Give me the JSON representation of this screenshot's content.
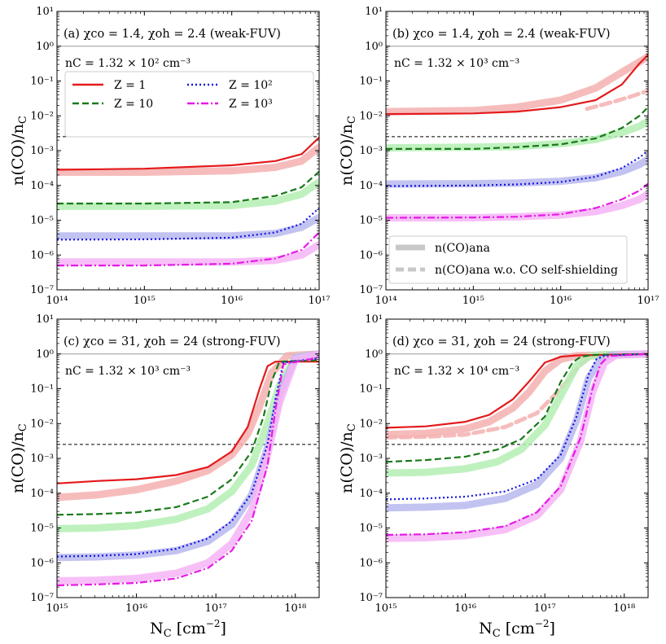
{
  "figure": {
    "ylabel": "n(CO)/n",
    "ylabel_sub": "C",
    "xlabel": "N",
    "xlabel_sub": "C",
    "xlabel_unit": "[cm",
    "xlabel_exp": "−2",
    "xlabel_close": "]"
  },
  "legend_main": [
    {
      "label": "Z = 1",
      "color": "#e41a1c",
      "style": "solid"
    },
    {
      "label": "Z = 10",
      "color": "#1a7a1a",
      "style": "dashed"
    },
    {
      "label": "Z = 10²",
      "color": "#1414e6",
      "style": "dotted"
    },
    {
      "label": "Z = 10³",
      "color": "#e619e6",
      "style": "dashdot"
    }
  ],
  "legend_analytic": [
    {
      "label": "n(CO)ana",
      "style": "thick-solid"
    },
    {
      "label": "n(CO)ana w.o. CO self-shielding",
      "style": "thick-dashed"
    }
  ],
  "colors": {
    "z1": "#e41a1c",
    "z10": "#1a7a1a",
    "z100": "#1414e6",
    "z1000": "#e619e6",
    "z1_light": "#f4b0b0",
    "z10_light": "#b4efb4",
    "z100_light": "#b8b8ef",
    "z1000_light": "#f6b4f6",
    "frame": "#000000",
    "ref": "#999999"
  },
  "chart_data": [
    {
      "id": "a",
      "type": "line",
      "title": "(a) χco = 1.4,  χoh = 2.4 (weak-FUV)",
      "density": "nC = 1.32 × 10² cm⁻³",
      "xlim_log": [
        14,
        17
      ],
      "ylim_log": [
        -7,
        1
      ],
      "xticks": [
        "10¹⁴",
        "10¹⁵",
        "10¹⁶",
        "10¹⁷"
      ],
      "yticks": [
        "10⁻⁷",
        "10⁻⁶",
        "10⁻⁵",
        "10⁻⁴",
        "10⁻³",
        "10⁻²",
        "10⁻¹",
        "10⁰",
        "10¹"
      ],
      "hline_log": -2.6,
      "series": [
        {
          "name": "Z = 1",
          "key": "z1",
          "style": "solid",
          "x": [
            14,
            15,
            16,
            16.5,
            16.8,
            17
          ],
          "y": [
            -3.55,
            -3.52,
            -3.42,
            -3.3,
            -3.1,
            -2.62
          ]
        },
        {
          "name": "Z = 1 (ana)",
          "key": "z1_light",
          "style": "band",
          "x": [
            14,
            15,
            16,
            16.5,
            16.8,
            17
          ],
          "y": [
            -3.62,
            -3.62,
            -3.58,
            -3.48,
            -3.3,
            -2.9
          ]
        },
        {
          "name": "Z = 10",
          "key": "z10",
          "style": "dashed",
          "x": [
            14,
            15,
            16,
            16.5,
            16.8,
            17
          ],
          "y": [
            -4.52,
            -4.52,
            -4.48,
            -4.3,
            -4.05,
            -3.6
          ]
        },
        {
          "name": "Z = 10 (ana)",
          "key": "z10_light",
          "style": "band",
          "x": [
            14,
            15,
            16,
            16.5,
            16.8,
            17
          ],
          "y": [
            -4.6,
            -4.6,
            -4.58,
            -4.45,
            -4.25,
            -3.9
          ]
        },
        {
          "name": "Z = 10²",
          "key": "z100",
          "style": "dotted",
          "x": [
            14,
            15,
            16,
            16.5,
            16.8,
            17
          ],
          "y": [
            -5.56,
            -5.55,
            -5.5,
            -5.35,
            -5.1,
            -4.65
          ]
        },
        {
          "name": "Z = 10² (ana)",
          "key": "z100_light",
          "style": "band",
          "x": [
            14,
            15,
            16,
            16.5,
            16.8,
            17
          ],
          "y": [
            -5.45,
            -5.45,
            -5.45,
            -5.38,
            -5.2,
            -4.92
          ]
        },
        {
          "name": "Z = 10³",
          "key": "z1000",
          "style": "dashdot",
          "x": [
            14,
            15,
            16,
            16.5,
            16.8,
            17
          ],
          "y": [
            -6.3,
            -6.3,
            -6.25,
            -6.1,
            -5.85,
            -5.35
          ]
        },
        {
          "name": "Z = 10³ (ana)",
          "key": "z1000_light",
          "style": "band",
          "x": [
            14,
            15,
            16,
            16.5,
            16.8,
            17
          ],
          "y": [
            -6.2,
            -6.2,
            -6.2,
            -6.15,
            -6.0,
            -5.7
          ]
        }
      ]
    },
    {
      "id": "b",
      "type": "line",
      "title": "(b) χco = 1.4,  χoh = 2.4 (weak-FUV)",
      "density": "nC = 1.32 × 10³ cm⁻³",
      "xlim_log": [
        14,
        17
      ],
      "ylim_log": [
        -7,
        1
      ],
      "xticks": [
        "10¹⁴",
        "10¹⁵",
        "10¹⁶",
        "10¹⁷"
      ],
      "yticks": [
        "10⁻⁷",
        "10⁻⁶",
        "10⁻⁵",
        "10⁻⁴",
        "10⁻³",
        "10⁻²",
        "10⁻¹",
        "10⁰",
        "10¹"
      ],
      "hline_log": -2.6,
      "series": [
        {
          "name": "Z = 1",
          "key": "z1",
          "style": "solid",
          "x": [
            14,
            15,
            15.5,
            16,
            16.4,
            16.7,
            16.9,
            17
          ],
          "y": [
            -1.95,
            -1.93,
            -1.88,
            -1.75,
            -1.55,
            -1.1,
            -0.5,
            -0.25
          ]
        },
        {
          "name": "Z = 1 (ana)",
          "key": "z1_light",
          "style": "band",
          "x": [
            14,
            15,
            15.5,
            16,
            16.4,
            16.7,
            16.9,
            17
          ],
          "y": [
            -1.88,
            -1.85,
            -1.75,
            -1.55,
            -1.2,
            -0.75,
            -0.45,
            -0.3
          ]
        },
        {
          "name": "Z = 1 (w.o.)",
          "key": "z1_light",
          "style": "dashband",
          "x": [
            16.3,
            16.6,
            16.8,
            17
          ],
          "y": [
            -1.8,
            -1.6,
            -1.45,
            -1.28
          ]
        },
        {
          "name": "Z = 10",
          "key": "z10",
          "style": "dashed",
          "x": [
            14,
            15,
            15.5,
            16,
            16.4,
            16.7,
            16.9,
            17
          ],
          "y": [
            -2.95,
            -2.95,
            -2.9,
            -2.82,
            -2.65,
            -2.35,
            -2.0,
            -1.75
          ]
        },
        {
          "name": "Z = 10 (ana)",
          "key": "z10_light",
          "style": "band",
          "x": [
            14,
            15,
            15.5,
            16,
            16.4,
            16.7,
            16.9,
            17
          ],
          "y": [
            -2.92,
            -2.9,
            -2.88,
            -2.8,
            -2.68,
            -2.48,
            -2.3,
            -2.15
          ]
        },
        {
          "name": "Z = 10²",
          "key": "z100",
          "style": "dotted",
          "x": [
            14,
            15,
            15.5,
            16,
            16.4,
            16.7,
            16.9,
            17
          ],
          "y": [
            -4.02,
            -4.0,
            -3.97,
            -3.9,
            -3.75,
            -3.5,
            -3.2,
            -3.0
          ]
        },
        {
          "name": "Z = 10² (ana)",
          "key": "z100_light",
          "style": "band",
          "x": [
            14,
            15,
            15.5,
            16,
            16.4,
            16.7,
            16.9,
            17
          ],
          "y": [
            -3.96,
            -3.95,
            -3.93,
            -3.88,
            -3.78,
            -3.6,
            -3.4,
            -3.25
          ]
        },
        {
          "name": "Z = 10³",
          "key": "z1000",
          "style": "dashdot",
          "x": [
            14,
            15,
            15.5,
            16,
            16.4,
            16.7,
            16.9,
            17
          ],
          "y": [
            -4.93,
            -4.92,
            -4.9,
            -4.83,
            -4.65,
            -4.4,
            -4.15,
            -3.95
          ]
        },
        {
          "name": "Z = 10³ (ana)",
          "key": "z1000_light",
          "style": "band",
          "x": [
            14,
            15,
            15.5,
            16,
            16.4,
            16.7,
            16.9,
            17
          ],
          "y": [
            -4.93,
            -4.93,
            -4.9,
            -4.85,
            -4.75,
            -4.58,
            -4.4,
            -4.25
          ]
        }
      ]
    },
    {
      "id": "c",
      "type": "line",
      "title": "(c) χco = 31,  χoh = 24 (strong-FUV)",
      "density": "nC = 1.32 × 10³ cm⁻³",
      "xlim_log": [
        15,
        18.3
      ],
      "ylim_log": [
        -7,
        1
      ],
      "xticks": [
        "10¹⁵",
        "10¹⁶",
        "10¹⁷",
        "10¹⁸"
      ],
      "yticks": [
        "10⁻⁷",
        "10⁻⁶",
        "10⁻⁵",
        "10⁻⁴",
        "10⁻³",
        "10⁻²",
        "10⁻¹",
        "10⁰",
        "10¹"
      ],
      "hline_log": -2.6,
      "series": [
        {
          "name": "Z = 1",
          "key": "z1",
          "style": "solid",
          "x": [
            15,
            15.5,
            16,
            16.5,
            16.9,
            17.2,
            17.4,
            17.55,
            17.65,
            17.75,
            18.3
          ],
          "y": [
            -3.72,
            -3.65,
            -3.6,
            -3.48,
            -3.25,
            -2.8,
            -2.1,
            -1.0,
            -0.35,
            -0.22,
            -0.22
          ]
        },
        {
          "name": "Z = 1 (ana)",
          "key": "z1_light",
          "style": "band",
          "x": [
            15,
            15.5,
            16,
            16.5,
            16.9,
            17.2,
            17.4,
            17.55,
            17.7,
            17.9,
            18.3
          ],
          "y": [
            -4.12,
            -4.05,
            -3.9,
            -3.65,
            -3.35,
            -2.9,
            -2.3,
            -1.5,
            -0.55,
            -0.05,
            0
          ]
        },
        {
          "name": "Z = 10",
          "key": "z10",
          "style": "dashed",
          "x": [
            15,
            15.5,
            16,
            16.5,
            16.9,
            17.2,
            17.45,
            17.6,
            17.7,
            17.8,
            18.3
          ],
          "y": [
            -4.62,
            -4.6,
            -4.55,
            -4.4,
            -4.1,
            -3.6,
            -2.8,
            -1.8,
            -0.8,
            -0.22,
            -0.18
          ]
        },
        {
          "name": "Z = 10 (ana)",
          "key": "z10_light",
          "style": "band",
          "x": [
            15,
            15.5,
            16,
            16.5,
            16.9,
            17.2,
            17.45,
            17.65,
            17.8,
            18.0,
            18.3
          ],
          "y": [
            -5.02,
            -5.0,
            -4.93,
            -4.75,
            -4.45,
            -3.95,
            -3.2,
            -2.0,
            -0.9,
            -0.1,
            0
          ]
        },
        {
          "name": "Z = 10²",
          "key": "z100",
          "style": "dotted",
          "x": [
            15,
            15.5,
            16,
            16.5,
            16.9,
            17.2,
            17.45,
            17.65,
            17.75,
            17.85,
            18.3
          ],
          "y": [
            -5.82,
            -5.8,
            -5.75,
            -5.6,
            -5.3,
            -4.8,
            -4.0,
            -2.6,
            -1.3,
            -0.25,
            -0.12
          ]
        },
        {
          "name": "Z = 10² (ana)",
          "key": "z100_light",
          "style": "band",
          "x": [
            15,
            15.5,
            16,
            16.5,
            16.9,
            17.2,
            17.45,
            17.65,
            17.8,
            18.0,
            18.3
          ],
          "y": [
            -5.85,
            -5.83,
            -5.78,
            -5.65,
            -5.38,
            -4.9,
            -4.05,
            -2.7,
            -1.2,
            -0.1,
            0
          ]
        },
        {
          "name": "Z = 10³",
          "key": "z1000",
          "style": "dashdot",
          "x": [
            15,
            15.5,
            16,
            16.5,
            16.9,
            17.2,
            17.45,
            17.65,
            17.75,
            17.85,
            18.3
          ],
          "y": [
            -6.65,
            -6.62,
            -6.58,
            -6.45,
            -6.15,
            -5.65,
            -4.8,
            -3.2,
            -1.6,
            -0.3,
            -0.1
          ]
        },
        {
          "name": "Z = 10³ (ana)",
          "key": "z1000_light",
          "style": "band",
          "x": [
            15,
            15.5,
            16,
            16.5,
            16.9,
            17.2,
            17.45,
            17.65,
            17.8,
            18.0,
            18.3
          ],
          "y": [
            -6.52,
            -6.5,
            -6.45,
            -6.3,
            -6.0,
            -5.45,
            -4.5,
            -2.9,
            -1.4,
            -0.15,
            0
          ]
        }
      ]
    },
    {
      "id": "d",
      "type": "line",
      "title": "(d) χco = 31,  χoh = 24 (strong-FUV)",
      "density": "nC = 1.32 × 10⁴ cm⁻³",
      "xlim_log": [
        15,
        18.3
      ],
      "ylim_log": [
        -7,
        1
      ],
      "xticks": [
        "10¹⁵",
        "10¹⁶",
        "10¹⁷",
        "10¹⁸"
      ],
      "yticks": [
        "10⁻⁷",
        "10⁻⁶",
        "10⁻⁵",
        "10⁻⁴",
        "10⁻³",
        "10⁻²",
        "10⁻¹",
        "10⁰",
        "10¹"
      ],
      "hline_log": -2.6,
      "series": [
        {
          "name": "Z = 1",
          "key": "z1",
          "style": "solid",
          "x": [
            15,
            15.5,
            16,
            16.3,
            16.6,
            16.8,
            17.0,
            17.2,
            17.4,
            18.3
          ],
          "y": [
            -2.12,
            -2.08,
            -1.95,
            -1.75,
            -1.3,
            -0.8,
            -0.25,
            -0.08,
            -0.04,
            0
          ]
        },
        {
          "name": "Z = 1 (ana)",
          "key": "z1_light",
          "style": "band",
          "x": [
            15,
            15.5,
            16,
            16.3,
            16.6,
            16.8,
            17.0,
            17.2,
            17.4,
            18.3
          ],
          "y": [
            -2.32,
            -2.28,
            -2.15,
            -1.95,
            -1.55,
            -1.1,
            -0.5,
            -0.15,
            -0.05,
            0
          ]
        },
        {
          "name": "Z = 1 (w.o.)",
          "key": "z1_light",
          "style": "dashband",
          "x": [
            15,
            15.5,
            16,
            16.5,
            16.9,
            17.2,
            17.45,
            17.6
          ],
          "y": [
            -2.4,
            -2.38,
            -2.32,
            -2.1,
            -1.7,
            -1.0,
            -0.3,
            -0.05
          ]
        },
        {
          "name": "Z = 10",
          "key": "z10",
          "style": "dashed",
          "x": [
            15,
            15.5,
            16,
            16.4,
            16.7,
            17.0,
            17.2,
            17.35,
            17.45,
            17.6,
            18.3
          ],
          "y": [
            -3.1,
            -3.05,
            -2.95,
            -2.75,
            -2.45,
            -1.8,
            -0.8,
            -0.25,
            -0.08,
            -0.03,
            0
          ]
        },
        {
          "name": "Z = 10 (ana)",
          "key": "z10_light",
          "style": "band",
          "x": [
            15,
            15.5,
            16,
            16.4,
            16.7,
            17.0,
            17.2,
            17.4,
            17.55,
            17.7,
            18.3
          ],
          "y": [
            -3.42,
            -3.4,
            -3.3,
            -3.1,
            -2.75,
            -2.05,
            -1.2,
            -0.35,
            -0.08,
            -0.02,
            0
          ]
        },
        {
          "name": "Z = 10²",
          "key": "z100",
          "style": "dotted",
          "x": [
            15,
            15.5,
            16,
            16.5,
            16.9,
            17.2,
            17.4,
            17.55,
            17.65,
            17.75,
            18.3
          ],
          "y": [
            -4.18,
            -4.15,
            -4.1,
            -3.95,
            -3.6,
            -2.9,
            -1.8,
            -0.6,
            -0.15,
            -0.05,
            0
          ]
        },
        {
          "name": "Z = 10² (ana)",
          "key": "z100_light",
          "style": "band",
          "x": [
            15,
            15.5,
            16,
            16.5,
            16.9,
            17.2,
            17.4,
            17.55,
            17.7,
            17.85,
            18.3
          ],
          "y": [
            -4.42,
            -4.4,
            -4.35,
            -4.15,
            -3.75,
            -3.0,
            -1.9,
            -0.7,
            -0.15,
            -0.03,
            0
          ]
        },
        {
          "name": "Z = 10³",
          "key": "z1000",
          "style": "dashdot",
          "x": [
            15,
            15.5,
            16,
            16.5,
            16.9,
            17.2,
            17.45,
            17.6,
            17.7,
            17.8,
            18.3
          ],
          "y": [
            -5.2,
            -5.18,
            -5.12,
            -4.95,
            -4.55,
            -3.8,
            -2.4,
            -1.0,
            -0.3,
            -0.06,
            0
          ]
        },
        {
          "name": "Z = 10³ (ana)",
          "key": "z1000_light",
          "style": "band",
          "x": [
            15,
            15.5,
            16,
            16.5,
            16.9,
            17.2,
            17.45,
            17.6,
            17.75,
            17.9,
            18.3
          ],
          "y": [
            -5.3,
            -5.28,
            -5.22,
            -5.05,
            -4.65,
            -3.9,
            -2.5,
            -1.1,
            -0.25,
            -0.03,
            0
          ]
        }
      ]
    }
  ]
}
